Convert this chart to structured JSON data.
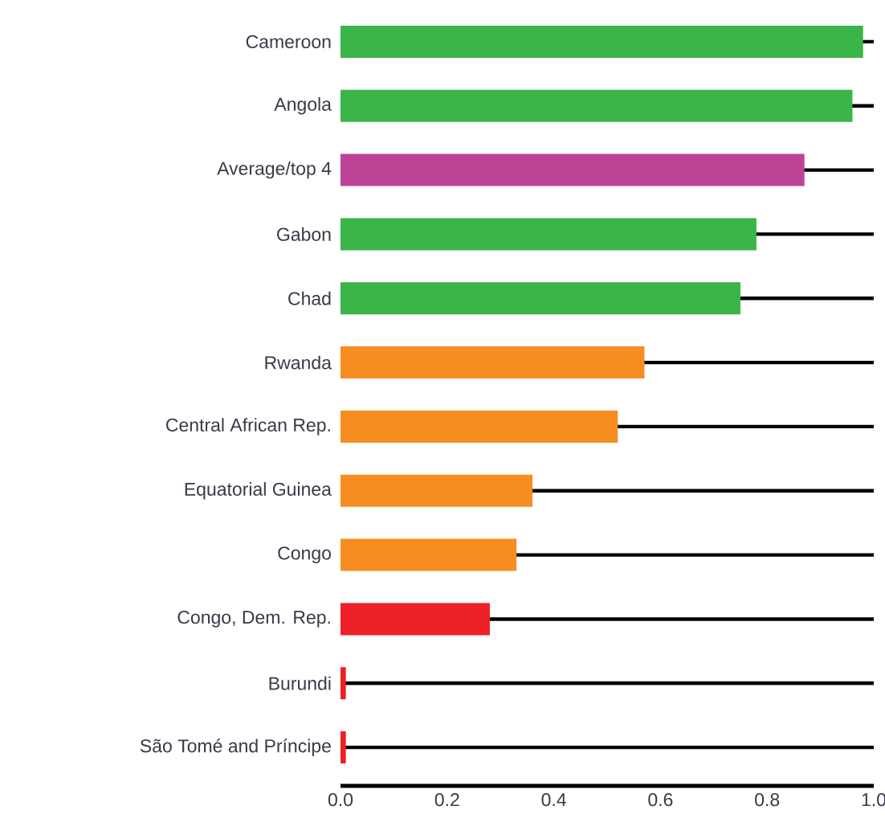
{
  "chart_data": {
    "type": "bar",
    "orientation": "horizontal",
    "categories": [
      "Cameroon",
      "Angola",
      "Average/top 4",
      "Gabon",
      "Chad",
      "Rwanda",
      "Central African Rep.",
      "Equatorial Guinea",
      "Congo",
      "Congo, Dem. Rep.",
      "Burundi",
      "São Tomé and Príncipe"
    ],
    "values": [
      0.98,
      0.96,
      0.87,
      0.78,
      0.75,
      0.57,
      0.52,
      0.36,
      0.33,
      0.28,
      0.01,
      0.01
    ],
    "colors": [
      "#3bb54a",
      "#3bb54a",
      "#bd4397",
      "#3bb54a",
      "#3bb54a",
      "#f68d20",
      "#f68d20",
      "#f68d20",
      "#f68d20",
      "#ed1f27",
      "#ed1f27",
      "#ed1f27"
    ],
    "xlim": [
      0,
      1
    ],
    "xticks": [
      {
        "value": 0,
        "label": "0.0"
      },
      0.2,
      0.4,
      0.6,
      0.8,
      {
        "value": 1,
        "label": "1.0"
      }
    ],
    "grid": "y"
  }
}
